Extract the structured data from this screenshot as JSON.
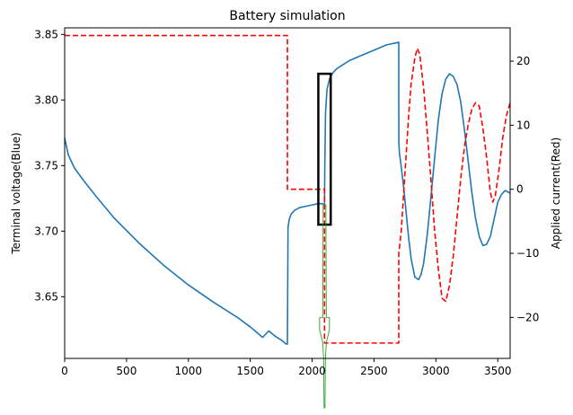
{
  "chart_data": {
    "type": "line",
    "title": "Battery simulation",
    "xlabel": "",
    "ylabel": "Terminal voltage(Blue)",
    "y2label": "Applied current(Red)",
    "xlim": [
      0,
      3600
    ],
    "ylim": [
      3.603,
      3.855
    ],
    "y2lim": [
      -26.4,
      25.2
    ],
    "xticks": [
      0,
      500,
      1000,
      1500,
      2000,
      2500,
      3000,
      3500
    ],
    "yticks": [
      3.65,
      3.7,
      3.75,
      3.8,
      3.85
    ],
    "y2ticks": [
      -20,
      -10,
      0,
      10,
      20
    ],
    "grid": false,
    "colors": {
      "voltage": "#1f77b4",
      "current": "#ff0000",
      "box": "#000000",
      "marker": "#2ca02c"
    },
    "series": [
      {
        "axis": "left",
        "style": "solid",
        "x": [
          0,
          30,
          80,
          150,
          250,
          400,
          600,
          800,
          1000,
          1200,
          1400,
          1500,
          1550,
          1600,
          1650,
          1700,
          1750,
          1790,
          1800,
          1805,
          1815,
          1830,
          1860,
          1900,
          1950,
          2000,
          2050,
          2080,
          2100,
          2102,
          2108,
          2120,
          2140,
          2170,
          2200,
          2250,
          2300,
          2400,
          2500,
          2600,
          2700,
          2700.5,
          2705,
          2720,
          2740,
          2760,
          2780,
          2800,
          2830,
          2860,
          2880,
          2900,
          2930,
          2960,
          2990,
          3020,
          3050,
          3080,
          3110,
          3140,
          3170,
          3200,
          3230,
          3260,
          3290,
          3320,
          3350,
          3380,
          3410,
          3440,
          3470,
          3500,
          3530,
          3560,
          3600
        ],
        "y": [
          3.771,
          3.758,
          3.748,
          3.739,
          3.727,
          3.71,
          3.691,
          3.674,
          3.659,
          3.646,
          3.634,
          3.627,
          3.623,
          3.619,
          3.624,
          3.62,
          3.617,
          3.614,
          3.614,
          3.703,
          3.709,
          3.713,
          3.716,
          3.718,
          3.719,
          3.72,
          3.721,
          3.721,
          3.72,
          3.748,
          3.79,
          3.808,
          3.816,
          3.821,
          3.824,
          3.827,
          3.83,
          3.834,
          3.838,
          3.842,
          3.844,
          3.768,
          3.76,
          3.749,
          3.733,
          3.714,
          3.695,
          3.679,
          3.665,
          3.663,
          3.667,
          3.675,
          3.697,
          3.726,
          3.756,
          3.785,
          3.805,
          3.816,
          3.82,
          3.818,
          3.812,
          3.799,
          3.778,
          3.754,
          3.73,
          3.71,
          3.696,
          3.689,
          3.69,
          3.696,
          3.709,
          3.722,
          3.728,
          3.731,
          3.729
        ]
      },
      {
        "axis": "right",
        "style": "dashed",
        "x": [
          0,
          1800,
          1800,
          2100,
          2100,
          2200,
          2200,
          2700,
          2700,
          2720,
          2750,
          2780,
          2800,
          2830,
          2850,
          2870,
          2900,
          2930,
          2960,
          2990,
          3020,
          3050,
          3080,
          3110,
          3140,
          3170,
          3200,
          3230,
          3260,
          3290,
          3320,
          3350,
          3380,
          3410,
          3440,
          3460,
          3480,
          3510,
          3540,
          3570,
          3600
        ],
        "y": [
          24.0,
          24.0,
          0.0,
          0.0,
          -24.0,
          -24.0,
          -24.0,
          -24.0,
          -10.0,
          -6.5,
          2.5,
          11.5,
          16.5,
          20.5,
          22.0,
          21.0,
          16.0,
          9.0,
          1.5,
          -6.5,
          -12.5,
          -17.0,
          -17.5,
          -15.0,
          -10.5,
          -4.5,
          1.5,
          6.5,
          10.0,
          12.5,
          13.5,
          13.0,
          9.5,
          5.0,
          -0.5,
          -2.0,
          -1.0,
          3.0,
          8.0,
          11.5,
          13.5
        ]
      }
    ]
  }
}
